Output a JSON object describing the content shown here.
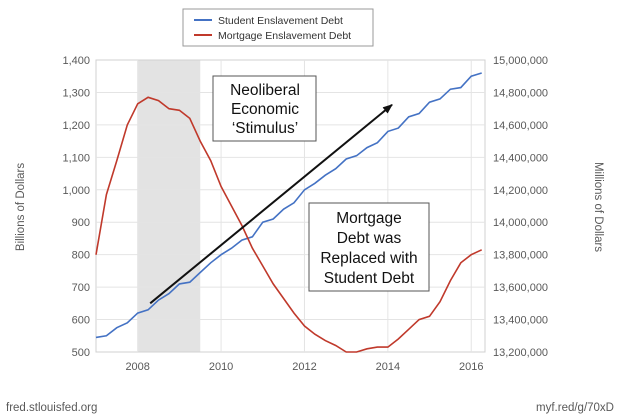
{
  "chart_data": {
    "type": "line",
    "legend": {
      "placement": "top-center",
      "entries": [
        {
          "label": "Student Enslavement Debt",
          "color": "#4472c4"
        },
        {
          "label": "Mortgage Enslavement Debt",
          "color": "#c0392b"
        }
      ]
    },
    "y_left": {
      "label": "Billions of Dollars",
      "range": [
        500,
        1400
      ],
      "ticks": [
        "500",
        "600",
        "700",
        "800",
        "900",
        "1,000",
        "1,100",
        "1,200",
        "1,300",
        "1,400"
      ]
    },
    "y_right": {
      "label": "Millions of Dollars",
      "range": [
        13200000,
        15000000
      ],
      "ticks": [
        "13,200,000",
        "13,400,000",
        "13,600,000",
        "13,800,000",
        "14,000,000",
        "14,200,000",
        "14,400,000",
        "14,600,000",
        "14,800,000",
        "15,000,000"
      ]
    },
    "x_axis": {
      "range": [
        2007.0,
        2016.33
      ],
      "ticks": [
        "2008",
        "2010",
        "2012",
        "2014",
        "2016"
      ]
    },
    "recession_shading": {
      "start": 2008.0,
      "end": 2009.5,
      "color": "#e3e3e3"
    },
    "grid": true,
    "series": [
      {
        "name": "Student Enslavement Debt",
        "axis": "left",
        "color": "#4472c4",
        "x": [
          2007.0,
          2007.25,
          2007.5,
          2007.75,
          2008.0,
          2008.25,
          2008.5,
          2008.75,
          2009.0,
          2009.25,
          2009.5,
          2009.75,
          2010.0,
          2010.25,
          2010.5,
          2010.75,
          2011.0,
          2011.25,
          2011.5,
          2011.75,
          2012.0,
          2012.25,
          2012.5,
          2012.75,
          2013.0,
          2013.25,
          2013.5,
          2013.75,
          2014.0,
          2014.25,
          2014.5,
          2014.75,
          2015.0,
          2015.25,
          2015.5,
          2015.75,
          2016.0,
          2016.25
        ],
        "values": [
          545,
          550,
          575,
          590,
          620,
          630,
          660,
          680,
          710,
          715,
          745,
          775,
          800,
          820,
          845,
          855,
          900,
          910,
          940,
          960,
          1000,
          1020,
          1045,
          1065,
          1095,
          1105,
          1130,
          1145,
          1180,
          1190,
          1225,
          1235,
          1270,
          1280,
          1310,
          1315,
          1350,
          1360
        ]
      },
      {
        "name": "Mortgage Enslavement Debt",
        "axis": "right",
        "color": "#c0392b",
        "x": [
          2007.0,
          2007.25,
          2007.5,
          2007.75,
          2008.0,
          2008.25,
          2008.5,
          2008.75,
          2009.0,
          2009.25,
          2009.5,
          2009.75,
          2010.0,
          2010.25,
          2010.5,
          2010.75,
          2011.0,
          2011.25,
          2011.5,
          2011.75,
          2012.0,
          2012.25,
          2012.5,
          2012.75,
          2013.0,
          2013.25,
          2013.5,
          2013.75,
          2014.0,
          2014.25,
          2014.5,
          2014.75,
          2015.0,
          2015.25,
          2015.5,
          2015.75,
          2016.0,
          2016.25
        ],
        "values": [
          13800000,
          14170000,
          14380000,
          14600000,
          14730000,
          14770000,
          14750000,
          14700000,
          14690000,
          14640000,
          14500000,
          14380000,
          14220000,
          14100000,
          13980000,
          13840000,
          13730000,
          13620000,
          13530000,
          13440000,
          13360000,
          13310000,
          13270000,
          13240000,
          13200000,
          13200000,
          13220000,
          13230000,
          13230000,
          13280000,
          13340000,
          13400000,
          13420000,
          13510000,
          13640000,
          13750000,
          13800000,
          13830000
        ]
      }
    ],
    "annotations": [
      {
        "id": "stimulus",
        "lines": [
          "Neoliberal",
          "Economic",
          "‘Stimulus’"
        ]
      },
      {
        "id": "replaced",
        "lines": [
          "Mortgage",
          "Debt was",
          "Replaced with",
          "Student Debt"
        ]
      }
    ],
    "arrow": {
      "from": [
        2008.3,
        650
      ],
      "to": [
        2014.1,
        1262
      ]
    },
    "footer": {
      "left": "fred.stlouisfed.org",
      "right": "myf.red/g/70xD"
    }
  }
}
